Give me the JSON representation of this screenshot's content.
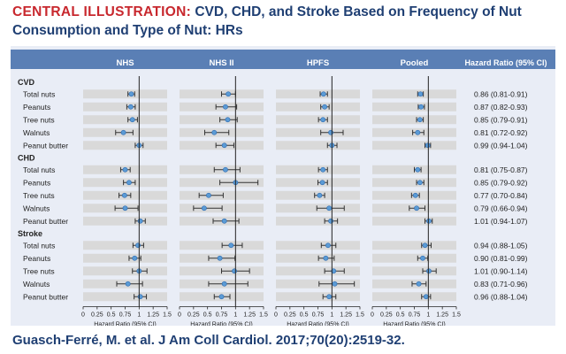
{
  "header": {
    "title_lead": "CENTRAL ILLUSTRATION:",
    "title_rest": "CVD, CHD, and Stroke Based on Frequency of Nut",
    "title_line2": "Consumption and Type of Nut: HRs"
  },
  "citation": "Guasch-Ferré, M. et al. J Am Coll Cardiol. 2017;70(20):2519-32.",
  "colors": {
    "header_band": "#5a7fb5",
    "panel_bg": "#e9edf6",
    "row_band": "#d9d9d9",
    "point": "#5b9bd5",
    "title_red": "#c8282e",
    "title_blue": "#1f3f73"
  },
  "chart_data": {
    "type": "forest",
    "cohorts": [
      "NHS",
      "NHS II",
      "HPFS",
      "Pooled"
    ],
    "hr_column_header": "Hazard Ratio (95% CI)",
    "xlabel": "Hazard Ratio (95% CI)",
    "xlim": [
      0,
      1.5
    ],
    "reference_line": 1,
    "ticks": [
      "0",
      "0.25",
      "0.5",
      "0.75",
      "1",
      "1.25",
      "1.5"
    ],
    "groups": [
      {
        "name": "CVD",
        "rows": [
          {
            "label": "Total nuts",
            "hr_text": "0.86 (0.81-0.91)",
            "points": [
              [
                0.86,
                0.8,
                0.92
              ],
              [
                0.87,
                0.75,
                1.0
              ],
              [
                0.85,
                0.79,
                0.92
              ],
              [
                0.86,
                0.81,
                0.91
              ]
            ]
          },
          {
            "label": "Peanuts",
            "hr_text": "0.87 (0.82-0.93)",
            "points": [
              [
                0.85,
                0.78,
                0.93
              ],
              [
                0.82,
                0.65,
                1.02
              ],
              [
                0.87,
                0.8,
                0.95
              ],
              [
                0.87,
                0.82,
                0.93
              ]
            ]
          },
          {
            "label": "Tree nuts",
            "hr_text": "0.85 (0.79-0.91)",
            "points": [
              [
                0.88,
                0.8,
                0.97
              ],
              [
                0.86,
                0.72,
                1.03
              ],
              [
                0.84,
                0.76,
                0.92
              ],
              [
                0.85,
                0.79,
                0.91
              ]
            ]
          },
          {
            "label": "Walnuts",
            "hr_text": "0.81 (0.72-0.92)",
            "points": [
              [
                0.72,
                0.58,
                0.89
              ],
              [
                0.62,
                0.45,
                0.88
              ],
              [
                0.98,
                0.8,
                1.2
              ],
              [
                0.81,
                0.72,
                0.92
              ]
            ]
          },
          {
            "label": "Peanut butter",
            "hr_text": "0.99 (0.94-1.04)",
            "points": [
              [
                1.0,
                0.93,
                1.07
              ],
              [
                0.8,
                0.65,
                0.97
              ],
              [
                1.0,
                0.92,
                1.09
              ],
              [
                0.99,
                0.94,
                1.04
              ]
            ]
          }
        ]
      },
      {
        "name": "CHD",
        "rows": [
          {
            "label": "Total nuts",
            "hr_text": "0.81 (0.75-0.87)",
            "points": [
              [
                0.75,
                0.67,
                0.84
              ],
              [
                0.82,
                0.62,
                1.08
              ],
              [
                0.84,
                0.76,
                0.92
              ],
              [
                0.81,
                0.75,
                0.87
              ]
            ]
          },
          {
            "label": "Peanuts",
            "hr_text": "0.85 (0.79-0.92)",
            "points": [
              [
                0.82,
                0.72,
                0.93
              ],
              [
                1.0,
                0.72,
                1.4
              ],
              [
                0.83,
                0.75,
                0.92
              ],
              [
                0.85,
                0.79,
                0.92
              ]
            ]
          },
          {
            "label": "Tree nuts",
            "hr_text": "0.77 (0.70-0.84)",
            "points": [
              [
                0.74,
                0.64,
                0.85
              ],
              [
                0.52,
                0.35,
                0.78
              ],
              [
                0.78,
                0.69,
                0.87
              ],
              [
                0.77,
                0.7,
                0.84
              ]
            ]
          },
          {
            "label": "Walnuts",
            "hr_text": "0.79 (0.66-0.94)",
            "points": [
              [
                0.75,
                0.57,
                0.98
              ],
              [
                0.44,
                0.25,
                0.76
              ],
              [
                0.95,
                0.73,
                1.22
              ],
              [
                0.79,
                0.66,
                0.94
              ]
            ]
          },
          {
            "label": "Peanut butter",
            "hr_text": "1.01 (0.94-1.07)",
            "points": [
              [
                1.02,
                0.93,
                1.11
              ],
              [
                0.8,
                0.6,
                1.06
              ],
              [
                0.98,
                0.87,
                1.1
              ],
              [
                1.01,
                0.94,
                1.07
              ]
            ]
          }
        ]
      },
      {
        "name": "Stroke",
        "rows": [
          {
            "label": "Total nuts",
            "hr_text": "0.94 (0.88-1.05)",
            "points": [
              [
                0.98,
                0.89,
                1.08
              ],
              [
                0.92,
                0.76,
                1.12
              ],
              [
                0.93,
                0.81,
                1.07
              ],
              [
                0.94,
                0.88,
                1.05
              ]
            ]
          },
          {
            "label": "Peanuts",
            "hr_text": "0.90 (0.81-0.99)",
            "points": [
              [
                0.92,
                0.82,
                1.03
              ],
              [
                0.72,
                0.52,
                0.99
              ],
              [
                0.89,
                0.76,
                1.04
              ],
              [
                0.9,
                0.81,
                0.99
              ]
            ]
          },
          {
            "label": "Tree nuts",
            "hr_text": "1.01 (0.90-1.14)",
            "points": [
              [
                1.0,
                0.88,
                1.14
              ],
              [
                0.98,
                0.75,
                1.25
              ],
              [
                1.03,
                0.87,
                1.22
              ],
              [
                1.01,
                0.9,
                1.14
              ]
            ]
          },
          {
            "label": "Walnuts",
            "hr_text": "0.83 (0.71-0.96)",
            "points": [
              [
                0.8,
                0.6,
                1.06
              ],
              [
                0.8,
                0.52,
                1.22
              ],
              [
                1.05,
                0.77,
                1.4
              ],
              [
                0.83,
                0.71,
                0.96
              ]
            ]
          },
          {
            "label": "Peanut butter",
            "hr_text": "0.96 (0.88-1.04)",
            "points": [
              [
                1.02,
                0.91,
                1.13
              ],
              [
                0.75,
                0.62,
                0.9
              ],
              [
                0.95,
                0.84,
                1.07
              ],
              [
                0.96,
                0.88,
                1.04
              ]
            ]
          }
        ]
      }
    ]
  }
}
